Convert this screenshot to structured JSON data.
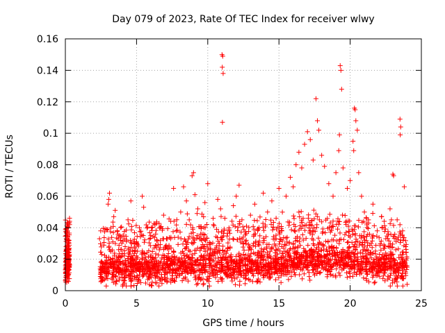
{
  "chart_data": {
    "type": "scatter",
    "title": "Day 079 of 2023, Rate Of TEC Index for receiver wlwy",
    "xlabel": "GPS time / hours",
    "ylabel": "ROTI / TECUs",
    "xlim": [
      0,
      25
    ],
    "ylim": [
      0,
      0.16
    ],
    "x_ticks": [
      0,
      5,
      10,
      15,
      20,
      25
    ],
    "x_tick_labels": [
      "0",
      "5",
      "10",
      "15",
      "20",
      "25"
    ],
    "y_ticks": [
      0,
      0.02,
      0.04,
      0.06,
      0.08,
      0.1,
      0.12,
      0.14,
      0.16
    ],
    "y_tick_labels": [
      "0",
      "0.02",
      "0.04",
      "0.06",
      "0.08",
      "0.1",
      "0.12",
      "0.14",
      "0.16"
    ],
    "grid": true,
    "marker": "+",
    "series": [
      {
        "name": "ROTI",
        "color": "#ff0000",
        "points": [
          [
            0.05,
            0.012
          ],
          [
            0.1,
            0.025
          ],
          [
            0.15,
            0.038
          ],
          [
            0.2,
            0.043
          ],
          [
            0.25,
            0.03
          ],
          [
            0.1,
            0.008
          ],
          [
            0.2,
            0.016
          ],
          [
            0.05,
            0.035
          ],
          [
            0.15,
            0.022
          ],
          [
            0.22,
            0.028
          ],
          [
            2.4,
            0.033
          ],
          [
            2.5,
            0.018
          ],
          [
            2.7,
            0.012
          ],
          [
            2.9,
            0.039
          ],
          [
            3.0,
            0.055
          ],
          [
            3.05,
            0.058
          ],
          [
            3.1,
            0.062
          ],
          [
            3.2,
            0.025
          ],
          [
            3.4,
            0.047
          ],
          [
            3.5,
            0.051
          ],
          [
            3.7,
            0.02
          ],
          [
            3.9,
            0.034
          ],
          [
            4.2,
            0.028
          ],
          [
            4.4,
            0.045
          ],
          [
            4.6,
            0.057
          ],
          [
            4.8,
            0.031
          ],
          [
            5.0,
            0.022
          ],
          [
            5.2,
            0.04
          ],
          [
            5.4,
            0.06
          ],
          [
            5.5,
            0.053
          ],
          [
            5.8,
            0.018
          ],
          [
            6.0,
            0.035
          ],
          [
            6.3,
            0.042
          ],
          [
            6.6,
            0.026
          ],
          [
            6.9,
            0.048
          ],
          [
            7.1,
            0.033
          ],
          [
            7.4,
            0.044
          ],
          [
            7.6,
            0.065
          ],
          [
            7.8,
            0.038
          ],
          [
            8.1,
            0.05
          ],
          [
            8.3,
            0.066
          ],
          [
            8.5,
            0.057
          ],
          [
            8.7,
            0.045
          ],
          [
            8.9,
            0.073
          ],
          [
            9.0,
            0.075
          ],
          [
            9.1,
            0.061
          ],
          [
            9.3,
            0.052
          ],
          [
            9.5,
            0.036
          ],
          [
            9.8,
            0.056
          ],
          [
            10.0,
            0.068
          ],
          [
            10.2,
            0.03
          ],
          [
            10.4,
            0.042
          ],
          [
            10.7,
            0.058
          ],
          [
            10.9,
            0.052
          ],
          [
            11.0,
            0.15
          ],
          [
            11.05,
            0.149
          ],
          [
            11.02,
            0.142
          ],
          [
            11.08,
            0.138
          ],
          [
            11.03,
            0.107
          ],
          [
            11.2,
            0.046
          ],
          [
            11.5,
            0.038
          ],
          [
            11.8,
            0.054
          ],
          [
            12.0,
            0.06
          ],
          [
            12.2,
            0.067
          ],
          [
            12.4,
            0.045
          ],
          [
            12.7,
            0.032
          ],
          [
            13.0,
            0.048
          ],
          [
            13.3,
            0.055
          ],
          [
            13.6,
            0.04
          ],
          [
            13.9,
            0.062
          ],
          [
            14.2,
            0.05
          ],
          [
            14.5,
            0.057
          ],
          [
            14.8,
            0.046
          ],
          [
            15.0,
            0.065
          ],
          [
            15.2,
            0.038
          ],
          [
            15.5,
            0.06
          ],
          [
            15.8,
            0.072
          ],
          [
            16.0,
            0.066
          ],
          [
            16.2,
            0.08
          ],
          [
            16.4,
            0.088
          ],
          [
            16.6,
            0.078
          ],
          [
            16.8,
            0.093
          ],
          [
            17.0,
            0.101
          ],
          [
            17.2,
            0.096
          ],
          [
            17.4,
            0.083
          ],
          [
            17.6,
            0.122
          ],
          [
            17.7,
            0.108
          ],
          [
            17.8,
            0.102
          ],
          [
            18.0,
            0.086
          ],
          [
            18.2,
            0.079
          ],
          [
            18.5,
            0.068
          ],
          [
            18.8,
            0.06
          ],
          [
            19.0,
            0.075
          ],
          [
            19.2,
            0.089
          ],
          [
            19.3,
            0.143
          ],
          [
            19.35,
            0.14
          ],
          [
            19.4,
            0.128
          ],
          [
            19.25,
            0.099
          ],
          [
            19.5,
            0.078
          ],
          [
            19.8,
            0.065
          ],
          [
            20.0,
            0.07
          ],
          [
            20.2,
            0.095
          ],
          [
            20.3,
            0.116
          ],
          [
            20.35,
            0.115
          ],
          [
            20.4,
            0.108
          ],
          [
            20.5,
            0.102
          ],
          [
            20.25,
            0.089
          ],
          [
            20.6,
            0.075
          ],
          [
            20.8,
            0.06
          ],
          [
            21.0,
            0.05
          ],
          [
            21.3,
            0.043
          ],
          [
            21.6,
            0.055
          ],
          [
            21.9,
            0.038
          ],
          [
            22.2,
            0.047
          ],
          [
            22.5,
            0.033
          ],
          [
            22.8,
            0.052
          ],
          [
            23.0,
            0.074
          ],
          [
            23.05,
            0.073
          ],
          [
            23.3,
            0.045
          ],
          [
            23.5,
            0.109
          ],
          [
            23.55,
            0.104
          ],
          [
            23.52,
            0.099
          ],
          [
            23.8,
            0.066
          ],
          [
            23.9,
            0.028
          ],
          [
            24.0,
            0.015
          ]
        ],
        "baseline": [
          [
            0.0,
            0.016
          ],
          [
            0.3,
            0.02
          ],
          [
            2.4,
            0.015
          ],
          [
            3.0,
            0.016
          ],
          [
            4.0,
            0.015
          ],
          [
            5.0,
            0.016
          ],
          [
            6.0,
            0.015
          ],
          [
            7.0,
            0.016
          ],
          [
            8.0,
            0.016
          ],
          [
            9.0,
            0.017
          ],
          [
            10.0,
            0.016
          ],
          [
            11.0,
            0.017
          ],
          [
            12.0,
            0.016
          ],
          [
            13.0,
            0.017
          ],
          [
            14.0,
            0.018
          ],
          [
            15.0,
            0.018
          ],
          [
            16.0,
            0.02
          ],
          [
            17.0,
            0.021
          ],
          [
            18.0,
            0.02
          ],
          [
            19.0,
            0.021
          ],
          [
            20.0,
            0.02
          ],
          [
            21.0,
            0.018
          ],
          [
            22.0,
            0.017
          ],
          [
            23.0,
            0.016
          ],
          [
            24.0,
            0.015
          ]
        ]
      }
    ]
  }
}
